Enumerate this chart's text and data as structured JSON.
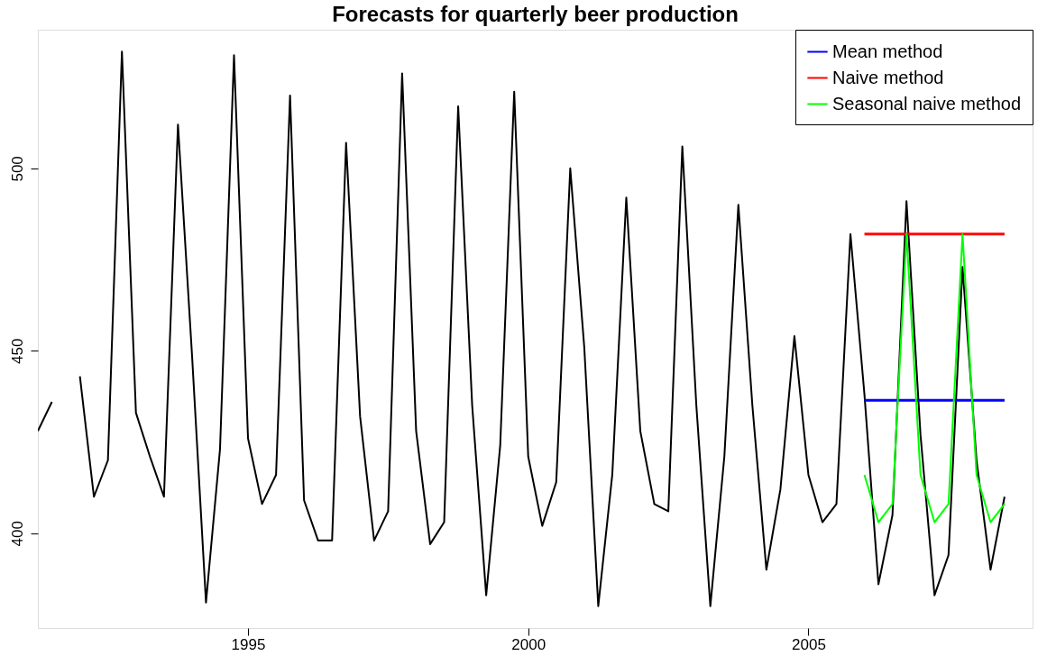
{
  "chart_data": {
    "type": "line",
    "title": "Forecasts for quarterly beer production",
    "x": [
      1991.25,
      1991.5,
      1991.75,
      1992,
      1992.25,
      1992.5,
      1992.75,
      1993,
      1993.25,
      1993.5,
      1993.75,
      1994,
      1994.25,
      1994.5,
      1994.75,
      1995,
      1995.25,
      1995.5,
      1995.75,
      1996,
      1996.25,
      1996.5,
      1996.75,
      1997,
      1997.25,
      1997.5,
      1997.75,
      1998,
      1998.25,
      1998.5,
      1998.75,
      1999,
      1999.25,
      1999.5,
      1999.75,
      2000,
      2000.25,
      2000.5,
      2000.75,
      2001,
      2001.25,
      2001.5,
      2001.75,
      2002,
      2002.25,
      2002.5,
      2002.75,
      2003,
      2003.25,
      2003.5,
      2003.75,
      2004,
      2004.25,
      2004.5,
      2004.75,
      2005,
      2005.25,
      2005.5,
      2005.75,
      2006,
      2006.25,
      2006.5,
      2006.75,
      2007,
      2007.25,
      2007.5,
      2007.75,
      2008,
      2008.25,
      2008.5
    ],
    "series": [
      {
        "color": "#000000",
        "values": [
          428,
          436,
          null,
          443,
          410,
          420,
          532,
          433,
          421,
          410,
          512,
          449,
          381,
          423,
          531,
          426,
          408,
          416,
          520,
          409,
          398,
          398,
          507,
          432,
          398,
          406,
          526,
          428,
          397,
          403,
          517,
          435,
          383,
          424,
          521,
          421,
          402,
          414,
          500,
          451,
          380,
          416,
          492,
          428,
          408,
          406,
          506,
          435,
          380,
          421,
          490,
          435,
          390,
          412,
          454,
          416,
          403,
          408,
          482,
          438,
          386,
          405,
          491,
          427,
          383,
          394,
          473,
          420,
          390,
          410
        ]
      },
      {
        "name": "Mean method",
        "color": "#0000ff",
        "x": [
          2006,
          2008.5
        ],
        "values": [
          436.4,
          436.4
        ]
      },
      {
        "name": "Naive method",
        "color": "#ff0000",
        "x": [
          2006,
          2008.5
        ],
        "values": [
          482,
          482
        ]
      },
      {
        "name": "Seasonal naive method",
        "color": "#00ff00",
        "x": [
          2006,
          2006.25,
          2006.5,
          2006.75,
          2007,
          2007.25,
          2007.5,
          2007.75,
          2008,
          2008.25,
          2008.5
        ],
        "values": [
          416,
          403,
          408,
          482,
          416,
          403,
          408,
          482,
          416,
          403,
          408
        ]
      }
    ],
    "xlim": [
      1991.25,
      2009.0
    ],
    "xticks": [
      1995,
      2000,
      2005
    ],
    "ylim": [
      374,
      538
    ],
    "yticks": [
      400,
      450,
      500
    ],
    "grid": false,
    "legend": "top right",
    "line_style": "solid",
    "marker": "none"
  }
}
